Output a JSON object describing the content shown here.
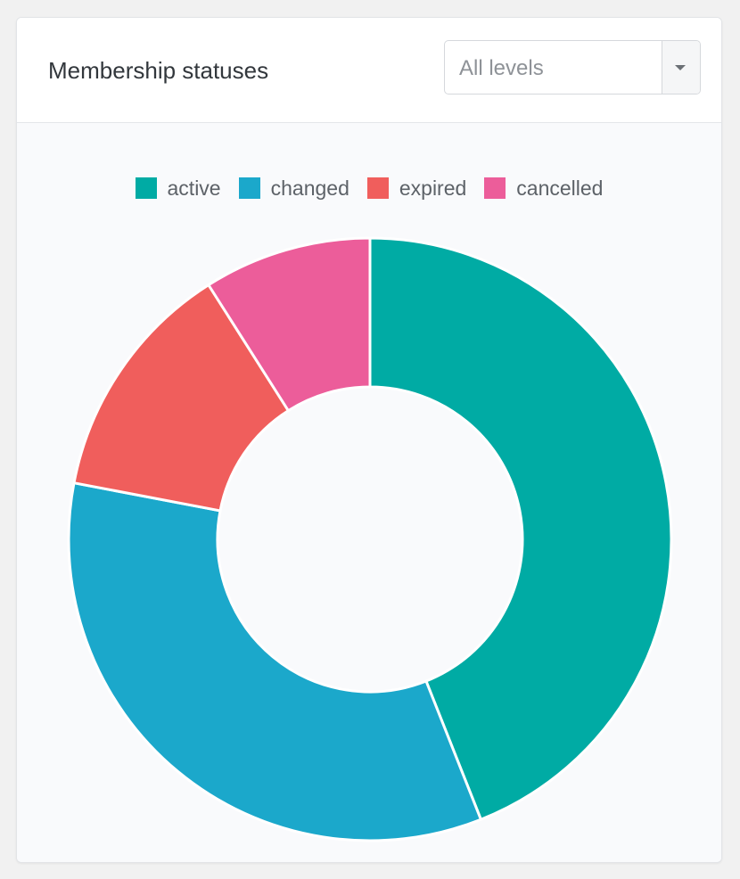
{
  "header": {
    "title": "Membership statuses",
    "level_select": {
      "value": "All levels"
    }
  },
  "chart_data": {
    "type": "pie",
    "variant": "doughnut",
    "categories": [
      "active",
      "changed",
      "expired",
      "cancelled"
    ],
    "values": [
      44,
      34,
      13,
      9
    ],
    "colors": [
      "#00aba4",
      "#1ba8cb",
      "#f05e5c",
      "#ec5d9a"
    ],
    "legend": {
      "position": "top",
      "items": [
        {
          "label": "active",
          "color": "#00aba4"
        },
        {
          "label": "changed",
          "color": "#1ba8cb"
        },
        {
          "label": "expired",
          "color": "#f05e5c"
        },
        {
          "label": "cancelled",
          "color": "#ec5d9a"
        }
      ]
    }
  }
}
